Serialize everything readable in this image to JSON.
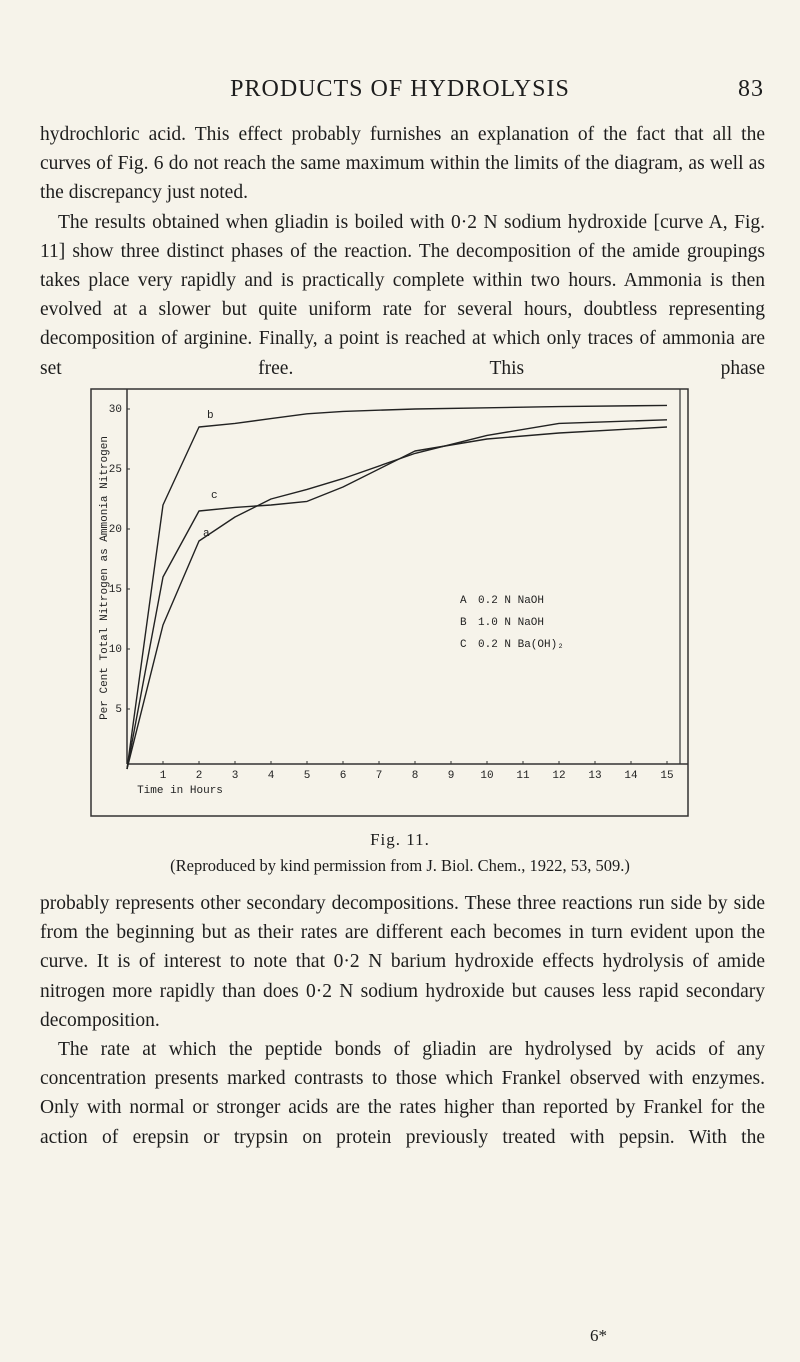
{
  "header": {
    "title": "PRODUCTS OF HYDROLYSIS",
    "page": "83"
  },
  "paragraphs_before": [
    "hydrochloric acid. This effect probably furnishes an explanation of the fact that all the curves of Fig. 6 do not reach the same maximum within the limits of the diagram, as well as the discrepancy just noted.",
    "The results obtained when gliadin is boiled with 0·2 N sodium hydroxide [curve A, Fig. 11] show three distinct phases of the reaction. The decomposition of the amide groupings takes place very rapidly and is practically complete within two hours. Ammonia is then evolved at a slower but quite uniform rate for several hours, doubtless representing decomposition of arginine. Finally, a point is reached at which only traces of ammonia are set free. This phase"
  ],
  "chart_data": {
    "type": "line",
    "ylabel": "Per Cent Total Nitrogen as Ammonia Nitrogen",
    "xlabel": "Time in Hours",
    "x": [
      0,
      1,
      2,
      3,
      4,
      5,
      6,
      8,
      10,
      12,
      15
    ],
    "series": [
      {
        "key": "A",
        "name": "0.2 N NaOH",
        "curve_label": "a",
        "color": "#222",
        "values": [
          0,
          12,
          19,
          21,
          22.5,
          23.3,
          24.2,
          26.3,
          27.8,
          28.8,
          29.1
        ]
      },
      {
        "key": "B",
        "name": "1.0 N NaOH",
        "curve_label": "b",
        "color": "#222",
        "values": [
          0,
          22,
          28.5,
          28.8,
          29.2,
          29.6,
          29.8,
          30,
          30.1,
          30.2,
          30.3
        ]
      },
      {
        "key": "C",
        "name": "0.2 N Ba(OH)₂",
        "curve_label": "c",
        "color": "#222",
        "values": [
          0,
          16,
          21.5,
          21.8,
          22,
          22.3,
          23.5,
          26.5,
          27.5,
          28,
          28.5
        ]
      }
    ],
    "xlim": [
      0,
      15.5
    ],
    "ylim": [
      0,
      31
    ],
    "xticks": [
      1,
      2,
      3,
      4,
      5,
      6,
      7,
      8,
      9,
      10,
      11,
      12,
      13,
      14,
      15
    ],
    "yticks": [
      5,
      10,
      15,
      20,
      25,
      30
    ]
  },
  "caption": {
    "figure": "Fig. 11.",
    "credit": "(Reproduced by kind permission from J. Biol. Chem., 1922, 53, 509.)"
  },
  "paragraphs_after": [
    "probably represents other secondary decompositions. These three reactions run side by side from the beginning but as their rates are different each becomes in turn evident upon the curve. It is of interest to note that 0·2 N barium hydroxide effects hydrolysis of amide nitrogen more rapidly than does 0·2 N sodium hydroxide but causes less rapid secondary decomposition.",
    "The rate at which the peptide bonds of gliadin are hydrolysed by acids of any concentration presents marked contrasts to those which Frankel observed with enzymes. Only with normal or stronger acids are the rates higher than reported by Frankel for the action of erepsin or trypsin on protein previously treated with pepsin. With the"
  ],
  "footer": {
    "signature": "6*"
  }
}
